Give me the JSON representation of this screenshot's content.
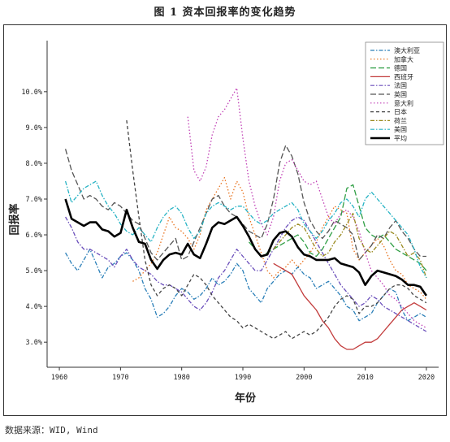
{
  "figure": {
    "title": "图 1  资本回报率的变化趋势",
    "source": "数据来源：WID, Wind"
  },
  "chart_data": {
    "type": "line",
    "xlabel": "年份",
    "ylabel": "回报率",
    "xlim": [
      1958,
      2022
    ],
    "ylim": [
      2.3,
      11.2
    ],
    "xticks": [
      1960,
      1970,
      1980,
      1990,
      2000,
      2010,
      2020
    ],
    "yticks": [
      3.0,
      4.0,
      5.0,
      6.0,
      7.0,
      8.0,
      9.0,
      10.0
    ],
    "ytick_labels": [
      "3.0%",
      "4.0%",
      "5.0%",
      "6.0%",
      "7.0%",
      "8.0%",
      "9.0%",
      "10.0%"
    ],
    "grid": false,
    "legend_position": "top-right",
    "series": [
      {
        "name": "澳大利亚",
        "color": "#2a7fb8",
        "dash": "dashdot",
        "x": [
          1961,
          1962,
          1963,
          1964,
          1965,
          1966,
          1967,
          1968,
          1969,
          1970,
          1971,
          1972,
          1973,
          1974,
          1975,
          1976,
          1977,
          1978,
          1979,
          1980,
          1981,
          1982,
          1983,
          1984,
          1985,
          1986,
          1987,
          1988,
          1989,
          1990,
          1991,
          1992,
          1993,
          1994,
          1995,
          1996,
          1997,
          1998,
          1999,
          2000,
          2001,
          2002,
          2003,
          2004,
          2005,
          2006,
          2007,
          2008,
          2009,
          2010,
          2011,
          2012,
          2013,
          2014,
          2015,
          2016,
          2017,
          2018,
          2019,
          2020
        ],
        "y": [
          5.5,
          5.2,
          5.0,
          5.3,
          5.6,
          5.2,
          4.8,
          5.1,
          5.2,
          5.4,
          5.5,
          5.3,
          5.0,
          4.5,
          4.2,
          3.7,
          3.8,
          4.0,
          4.3,
          4.5,
          4.4,
          4.2,
          4.3,
          4.5,
          4.8,
          4.6,
          4.7,
          4.9,
          5.2,
          5.0,
          4.5,
          4.3,
          4.1,
          4.5,
          4.7,
          4.9,
          5.0,
          4.9,
          5.1,
          4.9,
          4.8,
          4.5,
          4.6,
          4.7,
          4.5,
          4.3,
          4.0,
          3.9,
          3.6,
          3.7,
          3.8,
          4.1,
          4.3,
          4.5,
          4.4,
          3.9,
          3.6,
          3.7,
          3.8,
          3.7
        ]
      },
      {
        "name": "加拿大",
        "color": "#e8731f",
        "dash": "dotted",
        "x": [
          1972,
          1973,
          1974,
          1975,
          1976,
          1977,
          1978,
          1979,
          1980,
          1981,
          1982,
          1983,
          1984,
          1985,
          1986,
          1987,
          1988,
          1989,
          1990,
          1991,
          1992,
          1993,
          1994,
          1995,
          1996,
          1997,
          1998,
          1999,
          2000,
          2001,
          2002,
          2003,
          2004,
          2005,
          2006,
          2007,
          2008,
          2009,
          2010,
          2011,
          2012,
          2013,
          2014,
          2015,
          2016,
          2017,
          2018,
          2019,
          2020
        ],
        "y": [
          4.7,
          4.8,
          5.0,
          5.2,
          5.5,
          6.0,
          6.5,
          6.2,
          6.1,
          5.9,
          5.6,
          6.0,
          6.7,
          7.0,
          7.3,
          7.6,
          7.0,
          7.5,
          7.2,
          6.5,
          6.0,
          5.5,
          5.0,
          4.8,
          5.0,
          5.1,
          5.3,
          5.1,
          5.3,
          5.5,
          5.8,
          6.2,
          6.5,
          6.8,
          6.7,
          6.6,
          5.6,
          5.3,
          5.5,
          5.7,
          5.9,
          5.7,
          5.3,
          5.0,
          4.9,
          4.6,
          4.5,
          4.4,
          4.2
        ]
      },
      {
        "name": "德国",
        "color": "#2f9e44",
        "dash": "longdash",
        "x": [
          1991,
          1992,
          1993,
          1994,
          1995,
          1996,
          1997,
          1998,
          1999,
          2000,
          2001,
          2002,
          2003,
          2004,
          2005,
          2006,
          2007,
          2008,
          2009,
          2010,
          2011,
          2012,
          2013,
          2014,
          2015,
          2016,
          2017,
          2018,
          2019,
          2020
        ],
        "y": [
          5.8,
          5.6,
          5.4,
          5.5,
          5.6,
          5.7,
          5.8,
          5.9,
          6.0,
          5.8,
          5.5,
          5.4,
          5.6,
          5.9,
          6.2,
          6.5,
          7.3,
          7.4,
          6.8,
          6.2,
          6.0,
          5.9,
          6.0,
          5.8,
          5.6,
          5.5,
          5.4,
          5.3,
          5.2,
          5.0
        ]
      },
      {
        "name": "西班牙",
        "color": "#c23b3b",
        "dash": "solid",
        "x": [
          1995,
          1996,
          1997,
          1998,
          1999,
          2000,
          2001,
          2002,
          2003,
          2004,
          2005,
          2006,
          2007,
          2008,
          2009,
          2010,
          2011,
          2012,
          2013,
          2014,
          2015,
          2016,
          2017,
          2018,
          2019,
          2020
        ],
        "y": [
          5.2,
          5.1,
          5.0,
          4.9,
          4.6,
          4.3,
          4.1,
          3.9,
          3.6,
          3.4,
          3.1,
          2.9,
          2.8,
          2.8,
          2.9,
          3.0,
          3.0,
          3.1,
          3.3,
          3.5,
          3.7,
          3.9,
          4.0,
          4.1,
          4.0,
          3.9
        ]
      },
      {
        "name": "法国",
        "color": "#6b4fbb",
        "dash": "dashdot",
        "x": [
          1961,
          1962,
          1963,
          1964,
          1965,
          1966,
          1967,
          1968,
          1969,
          1970,
          1971,
          1972,
          1973,
          1974,
          1975,
          1976,
          1977,
          1978,
          1979,
          1980,
          1981,
          1982,
          1983,
          1984,
          1985,
          1986,
          1987,
          1988,
          1989,
          1990,
          1991,
          1992,
          1993,
          1994,
          1995,
          1996,
          1997,
          1998,
          1999,
          2000,
          2001,
          2002,
          2003,
          2004,
          2005,
          2006,
          2007,
          2008,
          2009,
          2010,
          2011,
          2012,
          2013,
          2014,
          2015,
          2016,
          2017,
          2018,
          2019,
          2020
        ],
        "y": [
          6.5,
          6.2,
          5.8,
          5.6,
          5.6,
          5.5,
          5.4,
          5.3,
          5.1,
          5.4,
          5.6,
          5.3,
          5.1,
          5.0,
          4.9,
          4.7,
          4.6,
          4.6,
          4.5,
          4.4,
          4.2,
          4.0,
          3.9,
          4.1,
          4.4,
          4.8,
          5.0,
          5.3,
          5.6,
          5.4,
          5.2,
          5.0,
          5.0,
          5.3,
          5.6,
          5.9,
          6.2,
          6.4,
          6.5,
          6.4,
          6.1,
          5.8,
          5.5,
          5.2,
          4.9,
          4.6,
          4.4,
          4.2,
          4.0,
          4.1,
          4.3,
          4.2,
          4.0,
          3.9,
          3.8,
          3.7,
          3.6,
          3.5,
          3.4,
          3.3
        ]
      },
      {
        "name": "英国",
        "color": "#555555",
        "dash": "longdash",
        "x": [
          1961,
          1962,
          1963,
          1964,
          1965,
          1966,
          1967,
          1968,
          1969,
          1970,
          1971,
          1972,
          1973,
          1974,
          1975,
          1976,
          1977,
          1978,
          1979,
          1980,
          1981,
          1982,
          1983,
          1984,
          1985,
          1986,
          1987,
          1988,
          1989,
          1990,
          1991,
          1992,
          1993,
          1994,
          1995,
          1996,
          1997,
          1998,
          1999,
          2000,
          2001,
          2002,
          2003,
          2004,
          2005,
          2006,
          2007,
          2008,
          2009,
          2010,
          2011,
          2012,
          2013,
          2014,
          2015,
          2016,
          2017,
          2018,
          2019,
          2020
        ],
        "y": [
          8.4,
          7.8,
          7.4,
          7.0,
          7.1,
          7.0,
          6.8,
          6.7,
          6.9,
          6.8,
          6.6,
          6.4,
          6.3,
          5.9,
          5.5,
          5.3,
          5.5,
          5.7,
          5.9,
          5.3,
          5.4,
          5.8,
          6.2,
          6.6,
          7.0,
          7.1,
          6.8,
          6.6,
          6.5,
          6.3,
          6.1,
          6.0,
          5.9,
          6.3,
          7.0,
          8.0,
          8.5,
          8.2,
          7.7,
          6.9,
          6.4,
          6.1,
          5.9,
          6.1,
          6.4,
          6.3,
          6.2,
          6.0,
          5.3,
          5.5,
          5.7,
          6.0,
          5.9,
          6.2,
          6.4,
          6.1,
          5.9,
          5.6,
          5.4,
          5.4
        ]
      },
      {
        "name": "意大利",
        "color": "#c03fb5",
        "dash": "dotted",
        "x": [
          1981,
          1982,
          1983,
          1984,
          1985,
          1986,
          1987,
          1988,
          1989,
          1990,
          1991,
          1992,
          1993,
          1994,
          1995,
          1996,
          1997,
          1998,
          1999,
          2000,
          2001,
          2002,
          2003,
          2004,
          2005,
          2006,
          2007,
          2008,
          2009,
          2010,
          2011,
          2012,
          2013,
          2014,
          2015,
          2016,
          2017,
          2018,
          2019,
          2020
        ],
        "y": [
          9.3,
          7.8,
          7.5,
          7.9,
          8.8,
          9.3,
          9.5,
          9.8,
          10.1,
          8.7,
          7.5,
          6.8,
          6.3,
          6.0,
          6.5,
          7.5,
          8.0,
          8.1,
          7.8,
          7.5,
          7.4,
          7.5,
          7.0,
          6.5,
          6.3,
          6.6,
          6.7,
          6.5,
          6.1,
          5.5,
          5.0,
          4.8,
          4.6,
          4.3,
          4.2,
          4.0,
          3.8,
          3.6,
          3.5,
          3.4
        ]
      },
      {
        "name": "日本",
        "color": "#444444",
        "dash": "shortdash",
        "x": [
          1971,
          1972,
          1973,
          1974,
          1975,
          1976,
          1977,
          1978,
          1979,
          1980,
          1981,
          1982,
          1983,
          1984,
          1985,
          1986,
          1987,
          1988,
          1989,
          1990,
          1991,
          1992,
          1993,
          1994,
          1995,
          1996,
          1997,
          1998,
          1999,
          2000,
          2001,
          2002,
          2003,
          2004,
          2005,
          2006,
          2007,
          2008,
          2009,
          2010,
          2011,
          2012,
          2013,
          2014,
          2015,
          2016,
          2017,
          2018,
          2019,
          2020
        ],
        "y": [
          9.2,
          7.8,
          6.5,
          5.3,
          4.6,
          4.3,
          4.5,
          4.6,
          4.5,
          4.3,
          4.6,
          4.9,
          4.8,
          4.6,
          4.3,
          4.1,
          3.9,
          3.7,
          3.6,
          3.4,
          3.5,
          3.4,
          3.3,
          3.2,
          3.1,
          3.2,
          3.3,
          3.1,
          3.2,
          3.3,
          3.2,
          3.3,
          3.5,
          3.7,
          4.0,
          4.2,
          4.3,
          4.2,
          3.8,
          4.0,
          4.0,
          4.1,
          4.3,
          4.5,
          4.6,
          4.6,
          4.5,
          4.3,
          4.2,
          4.1
        ]
      },
      {
        "name": "荷兰",
        "color": "#9a8a1f",
        "dash": "dashdot",
        "x": [
          1995,
          1996,
          1997,
          1998,
          1999,
          2000,
          2001,
          2002,
          2003,
          2004,
          2005,
          2006,
          2007,
          2008,
          2009,
          2010,
          2011,
          2012,
          2013,
          2014,
          2015,
          2016,
          2017,
          2018,
          2019,
          2020
        ],
        "y": [
          5.6,
          5.8,
          6.0,
          6.2,
          6.3,
          6.2,
          5.9,
          5.6,
          5.4,
          5.5,
          5.8,
          6.0,
          6.3,
          6.6,
          5.9,
          5.6,
          5.5,
          5.7,
          5.9,
          6.1,
          6.0,
          5.7,
          5.4,
          5.5,
          5.3,
          4.8
        ]
      },
      {
        "name": "美国",
        "color": "#27b3c4",
        "dash": "dashdot",
        "x": [
          1961,
          1962,
          1963,
          1964,
          1965,
          1966,
          1967,
          1968,
          1969,
          1970,
          1971,
          1972,
          1973,
          1974,
          1975,
          1976,
          1977,
          1978,
          1979,
          1980,
          1981,
          1982,
          1983,
          1984,
          1985,
          1986,
          1987,
          1988,
          1989,
          1990,
          1991,
          1992,
          1993,
          1994,
          1995,
          1996,
          1997,
          1998,
          1999,
          2000,
          2001,
          2002,
          2003,
          2004,
          2005,
          2006,
          2007,
          2008,
          2009,
          2010,
          2011,
          2012,
          2013,
          2014,
          2015,
          2016,
          2017,
          2018,
          2019,
          2020
        ],
        "y": [
          7.5,
          6.9,
          7.1,
          7.3,
          7.4,
          7.5,
          7.1,
          6.8,
          6.6,
          6.3,
          6.1,
          6.0,
          6.2,
          6.0,
          5.8,
          6.2,
          6.5,
          6.7,
          6.8,
          6.6,
          6.2,
          5.9,
          6.1,
          6.6,
          6.8,
          6.9,
          6.8,
          6.7,
          6.8,
          6.8,
          6.6,
          6.4,
          6.3,
          6.4,
          6.6,
          6.7,
          6.8,
          6.9,
          6.7,
          6.3,
          6.1,
          5.9,
          6.1,
          6.4,
          6.6,
          6.9,
          7.0,
          6.8,
          6.5,
          7.0,
          7.2,
          7.0,
          6.8,
          6.6,
          6.4,
          6.2,
          6.0,
          5.6,
          5.1,
          4.8
        ]
      },
      {
        "name": "平均",
        "color": "#000000",
        "dash": "solid",
        "bold": true,
        "x": [
          1961,
          1962,
          1963,
          1964,
          1965,
          1966,
          1967,
          1968,
          1969,
          1970,
          1971,
          1972,
          1973,
          1974,
          1975,
          1976,
          1977,
          1978,
          1979,
          1980,
          1981,
          1982,
          1983,
          1984,
          1985,
          1986,
          1987,
          1988,
          1989,
          1990,
          1991,
          1992,
          1993,
          1994,
          1995,
          1996,
          1997,
          1998,
          1999,
          2000,
          2001,
          2002,
          2003,
          2004,
          2005,
          2006,
          2007,
          2008,
          2009,
          2010,
          2011,
          2012,
          2013,
          2014,
          2015,
          2016,
          2017,
          2018,
          2019,
          2020
        ],
        "y": [
          7.0,
          6.45,
          6.35,
          6.25,
          6.35,
          6.35,
          6.15,
          6.1,
          5.95,
          6.05,
          6.7,
          6.2,
          5.8,
          5.75,
          5.3,
          5.05,
          5.3,
          5.45,
          5.5,
          5.45,
          5.75,
          5.45,
          5.35,
          5.75,
          6.2,
          6.35,
          6.3,
          6.4,
          6.5,
          6.25,
          5.95,
          5.6,
          5.4,
          5.45,
          5.85,
          6.05,
          6.1,
          5.95,
          5.65,
          5.45,
          5.4,
          5.3,
          5.3,
          5.3,
          5.35,
          5.2,
          5.15,
          5.1,
          4.95,
          4.6,
          4.85,
          5.0,
          4.95,
          4.9,
          4.85,
          4.75,
          4.6,
          4.6,
          4.55,
          4.3
        ]
      }
    ]
  }
}
